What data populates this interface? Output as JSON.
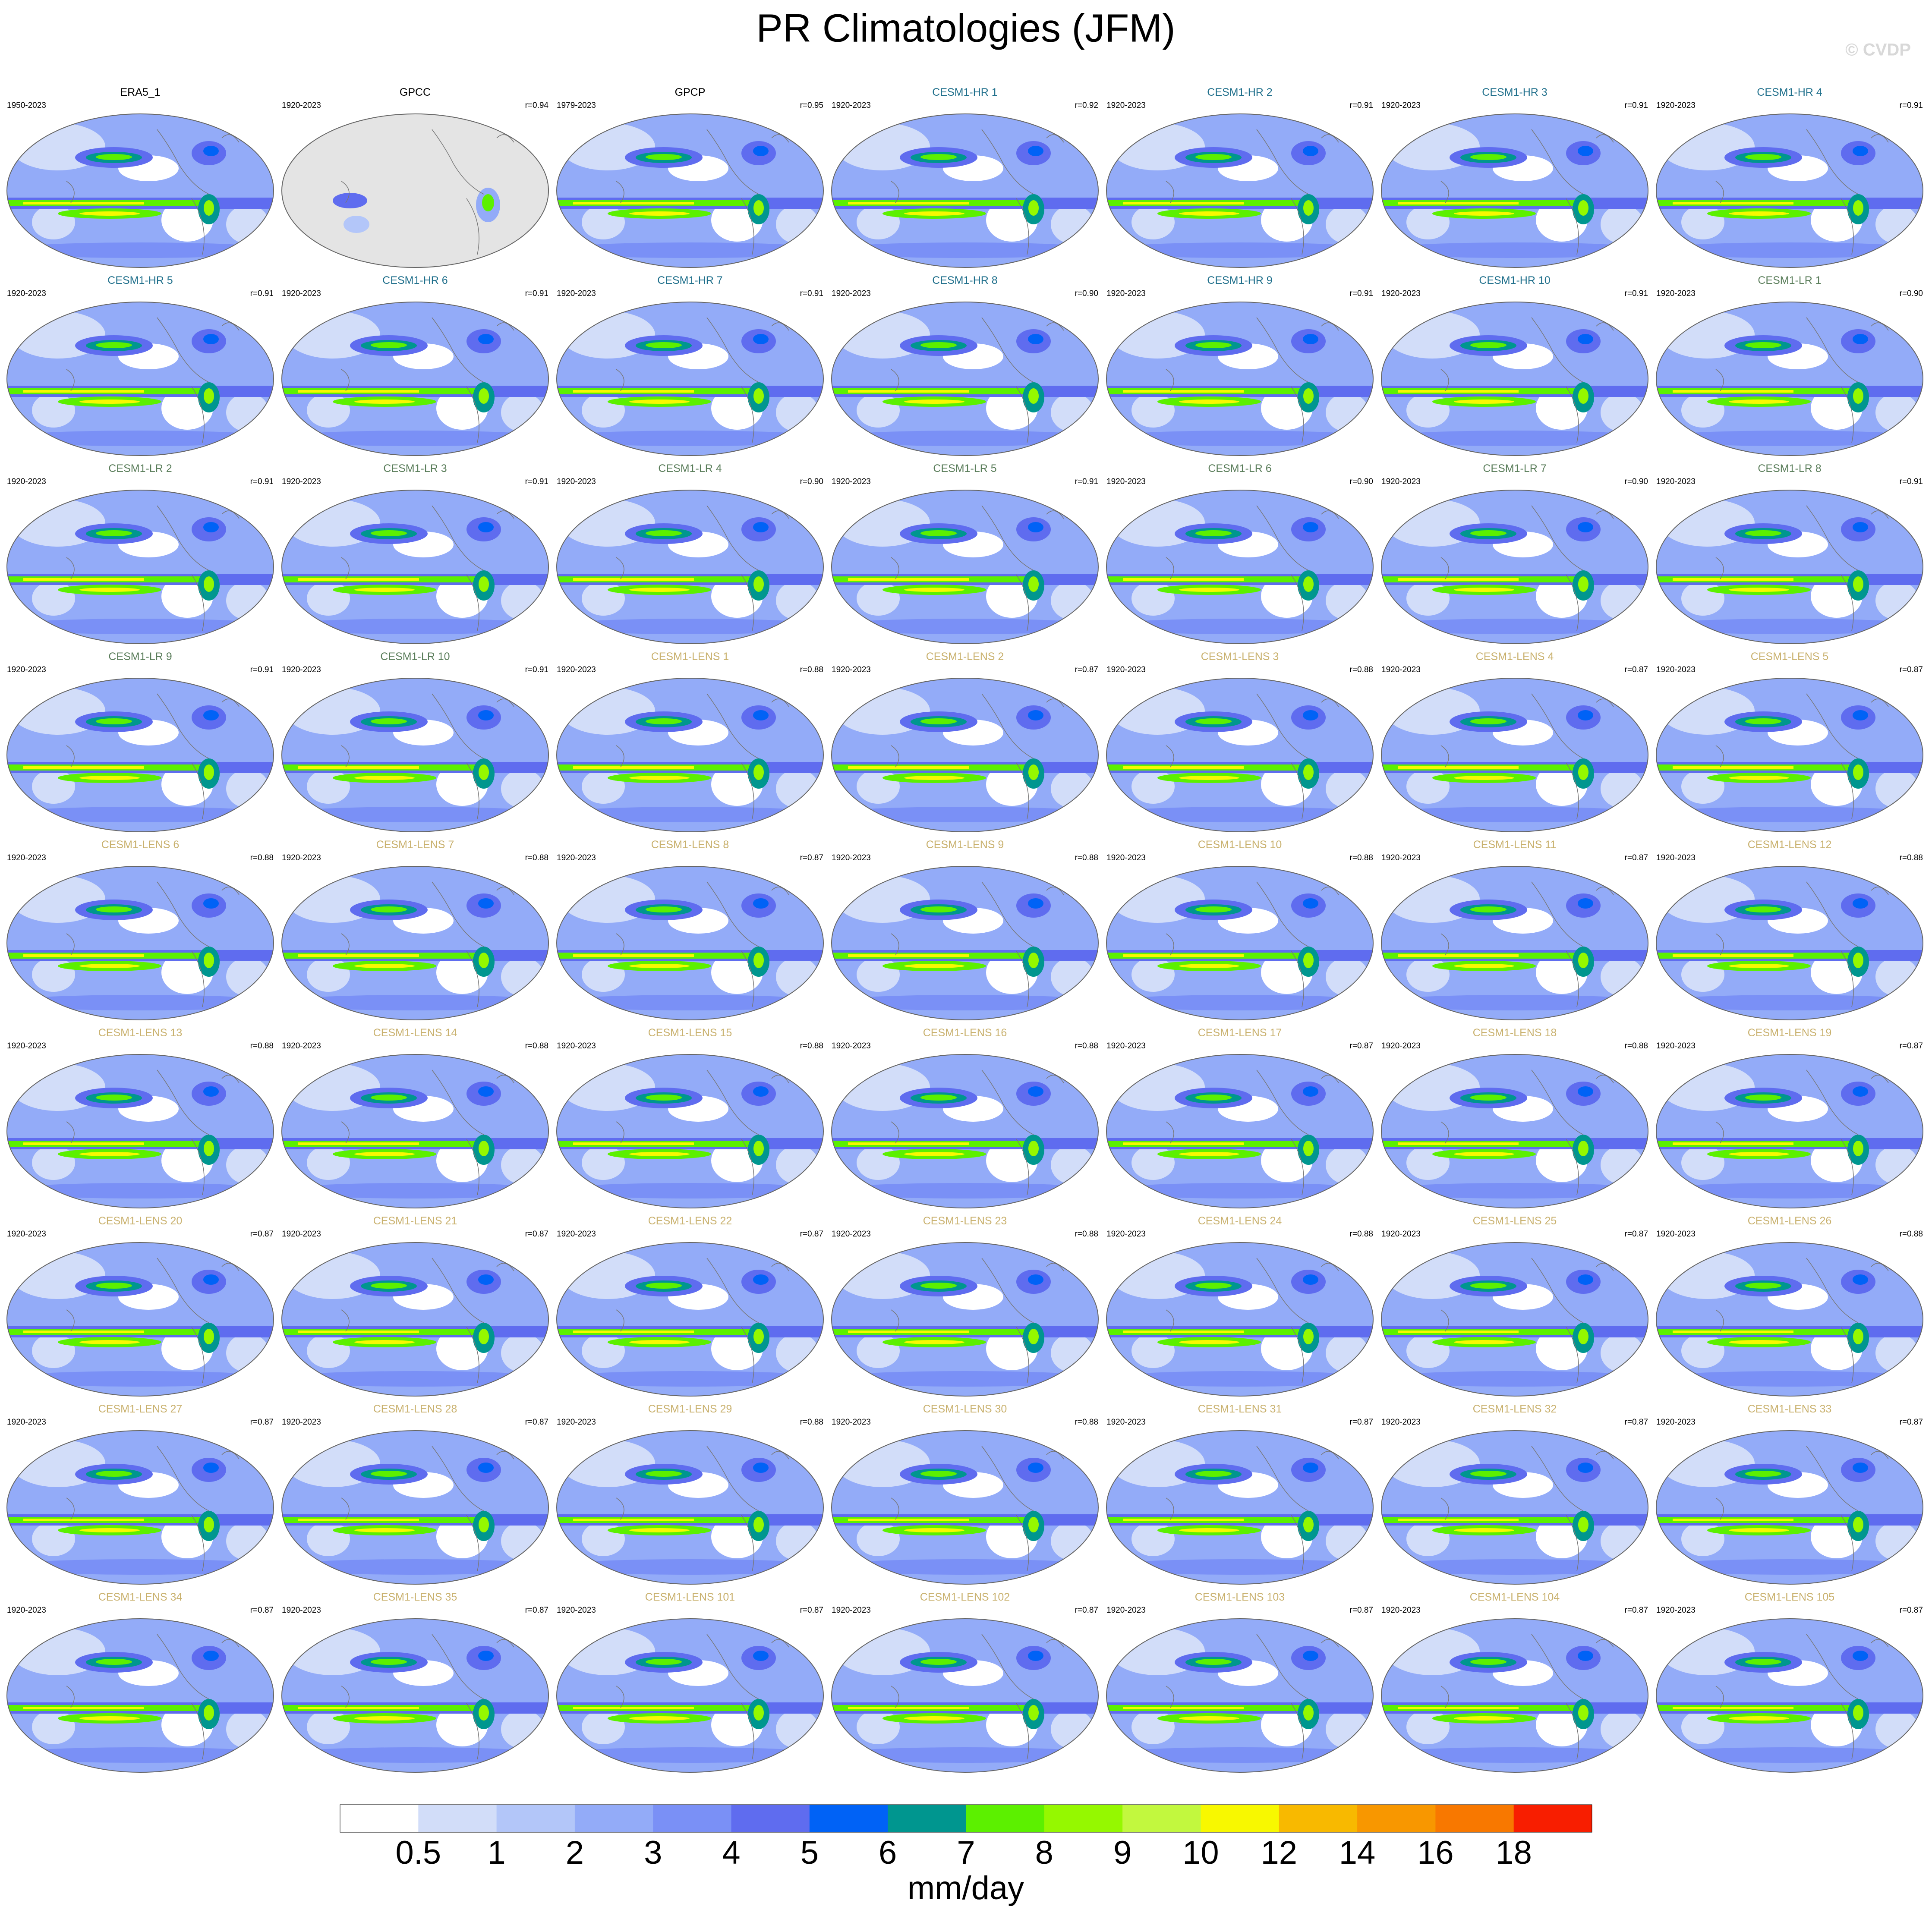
{
  "header": {
    "title": "PR Climatologies (JFM)",
    "watermark": "© CVDP"
  },
  "panels": [
    {
      "title": "ERA5_1",
      "years": "1950-2023",
      "r": null,
      "title_color": "#000000"
    },
    {
      "title": "GPCC",
      "years": "1920-2023",
      "r": "r=0.94",
      "title_color": "#000000",
      "land_only": true
    },
    {
      "title": "GPCP",
      "years": "1979-2023",
      "r": "r=0.95",
      "title_color": "#000000"
    },
    {
      "title": "CESM1-HR 1",
      "years": "1920-2023",
      "r": "r=0.92",
      "title_color": "#1f6f8b"
    },
    {
      "title": "CESM1-HR 2",
      "years": "1920-2023",
      "r": "r=0.91",
      "title_color": "#1f6f8b"
    },
    {
      "title": "CESM1-HR 3",
      "years": "1920-2023",
      "r": "r=0.91",
      "title_color": "#1f6f8b"
    },
    {
      "title": "CESM1-HR 4",
      "years": "1920-2023",
      "r": "r=0.91",
      "title_color": "#1f6f8b"
    },
    {
      "title": "CESM1-HR 5",
      "years": "1920-2023",
      "r": "r=0.91",
      "title_color": "#1f6f8b"
    },
    {
      "title": "CESM1-HR 6",
      "years": "1920-2023",
      "r": "r=0.91",
      "title_color": "#1f6f8b"
    },
    {
      "title": "CESM1-HR 7",
      "years": "1920-2023",
      "r": "r=0.91",
      "title_color": "#1f6f8b"
    },
    {
      "title": "CESM1-HR 8",
      "years": "1920-2023",
      "r": "r=0.90",
      "title_color": "#1f6f8b"
    },
    {
      "title": "CESM1-HR 9",
      "years": "1920-2023",
      "r": "r=0.91",
      "title_color": "#1f6f8b"
    },
    {
      "title": "CESM1-HR 10",
      "years": "1920-2023",
      "r": "r=0.91",
      "title_color": "#1f6f8b"
    },
    {
      "title": "CESM1-LR 1",
      "years": "1920-2023",
      "r": "r=0.90",
      "title_color": "#5a7d5a"
    },
    {
      "title": "CESM1-LR 2",
      "years": "1920-2023",
      "r": "r=0.91",
      "title_color": "#5a7d5a"
    },
    {
      "title": "CESM1-LR 3",
      "years": "1920-2023",
      "r": "r=0.91",
      "title_color": "#5a7d5a"
    },
    {
      "title": "CESM1-LR 4",
      "years": "1920-2023",
      "r": "r=0.90",
      "title_color": "#5a7d5a"
    },
    {
      "title": "CESM1-LR 5",
      "years": "1920-2023",
      "r": "r=0.91",
      "title_color": "#5a7d5a"
    },
    {
      "title": "CESM1-LR 6",
      "years": "1920-2023",
      "r": "r=0.90",
      "title_color": "#5a7d5a"
    },
    {
      "title": "CESM1-LR 7",
      "years": "1920-2023",
      "r": "r=0.90",
      "title_color": "#5a7d5a"
    },
    {
      "title": "CESM1-LR 8",
      "years": "1920-2023",
      "r": "r=0.91",
      "title_color": "#5a7d5a"
    },
    {
      "title": "CESM1-LR 9",
      "years": "1920-2023",
      "r": "r=0.91",
      "title_color": "#5a7d5a"
    },
    {
      "title": "CESM1-LR 10",
      "years": "1920-2023",
      "r": "r=0.91",
      "title_color": "#5a7d5a"
    },
    {
      "title": "CESM1-LENS 1",
      "years": "1920-2023",
      "r": "r=0.88",
      "title_color": "#c9b16e"
    },
    {
      "title": "CESM1-LENS 2",
      "years": "1920-2023",
      "r": "r=0.87",
      "title_color": "#c9b16e"
    },
    {
      "title": "CESM1-LENS 3",
      "years": "1920-2023",
      "r": "r=0.88",
      "title_color": "#c9b16e"
    },
    {
      "title": "CESM1-LENS 4",
      "years": "1920-2023",
      "r": "r=0.87",
      "title_color": "#c9b16e"
    },
    {
      "title": "CESM1-LENS 5",
      "years": "1920-2023",
      "r": "r=0.87",
      "title_color": "#c9b16e"
    },
    {
      "title": "CESM1-LENS 6",
      "years": "1920-2023",
      "r": "r=0.88",
      "title_color": "#c9b16e"
    },
    {
      "title": "CESM1-LENS 7",
      "years": "1920-2023",
      "r": "r=0.88",
      "title_color": "#c9b16e"
    },
    {
      "title": "CESM1-LENS 8",
      "years": "1920-2023",
      "r": "r=0.87",
      "title_color": "#c9b16e"
    },
    {
      "title": "CESM1-LENS 9",
      "years": "1920-2023",
      "r": "r=0.88",
      "title_color": "#c9b16e"
    },
    {
      "title": "CESM1-LENS 10",
      "years": "1920-2023",
      "r": "r=0.88",
      "title_color": "#c9b16e"
    },
    {
      "title": "CESM1-LENS 11",
      "years": "1920-2023",
      "r": "r=0.87",
      "title_color": "#c9b16e"
    },
    {
      "title": "CESM1-LENS 12",
      "years": "1920-2023",
      "r": "r=0.88",
      "title_color": "#c9b16e"
    },
    {
      "title": "CESM1-LENS 13",
      "years": "1920-2023",
      "r": "r=0.88",
      "title_color": "#c9b16e"
    },
    {
      "title": "CESM1-LENS 14",
      "years": "1920-2023",
      "r": "r=0.88",
      "title_color": "#c9b16e"
    },
    {
      "title": "CESM1-LENS 15",
      "years": "1920-2023",
      "r": "r=0.88",
      "title_color": "#c9b16e"
    },
    {
      "title": "CESM1-LENS 16",
      "years": "1920-2023",
      "r": "r=0.88",
      "title_color": "#c9b16e"
    },
    {
      "title": "CESM1-LENS 17",
      "years": "1920-2023",
      "r": "r=0.87",
      "title_color": "#c9b16e"
    },
    {
      "title": "CESM1-LENS 18",
      "years": "1920-2023",
      "r": "r=0.88",
      "title_color": "#c9b16e"
    },
    {
      "title": "CESM1-LENS 19",
      "years": "1920-2023",
      "r": "r=0.87",
      "title_color": "#c9b16e"
    },
    {
      "title": "CESM1-LENS 20",
      "years": "1920-2023",
      "r": "r=0.87",
      "title_color": "#c9b16e"
    },
    {
      "title": "CESM1-LENS 21",
      "years": "1920-2023",
      "r": "r=0.87",
      "title_color": "#c9b16e"
    },
    {
      "title": "CESM1-LENS 22",
      "years": "1920-2023",
      "r": "r=0.87",
      "title_color": "#c9b16e"
    },
    {
      "title": "CESM1-LENS 23",
      "years": "1920-2023",
      "r": "r=0.88",
      "title_color": "#c9b16e"
    },
    {
      "title": "CESM1-LENS 24",
      "years": "1920-2023",
      "r": "r=0.88",
      "title_color": "#c9b16e"
    },
    {
      "title": "CESM1-LENS 25",
      "years": "1920-2023",
      "r": "r=0.87",
      "title_color": "#c9b16e"
    },
    {
      "title": "CESM1-LENS 26",
      "years": "1920-2023",
      "r": "r=0.88",
      "title_color": "#c9b16e"
    },
    {
      "title": "CESM1-LENS 27",
      "years": "1920-2023",
      "r": "r=0.87",
      "title_color": "#c9b16e"
    },
    {
      "title": "CESM1-LENS 28",
      "years": "1920-2023",
      "r": "r=0.87",
      "title_color": "#c9b16e"
    },
    {
      "title": "CESM1-LENS 29",
      "years": "1920-2023",
      "r": "r=0.88",
      "title_color": "#c9b16e"
    },
    {
      "title": "CESM1-LENS 30",
      "years": "1920-2023",
      "r": "r=0.88",
      "title_color": "#c9b16e"
    },
    {
      "title": "CESM1-LENS 31",
      "years": "1920-2023",
      "r": "r=0.87",
      "title_color": "#c9b16e"
    },
    {
      "title": "CESM1-LENS 32",
      "years": "1920-2023",
      "r": "r=0.87",
      "title_color": "#c9b16e"
    },
    {
      "title": "CESM1-LENS 33",
      "years": "1920-2023",
      "r": "r=0.87",
      "title_color": "#c9b16e"
    },
    {
      "title": "CESM1-LENS 34",
      "years": "1920-2023",
      "r": "r=0.87",
      "title_color": "#c9b16e"
    },
    {
      "title": "CESM1-LENS 35",
      "years": "1920-2023",
      "r": "r=0.87",
      "title_color": "#c9b16e"
    },
    {
      "title": "CESM1-LENS 101",
      "years": "1920-2023",
      "r": "r=0.87",
      "title_color": "#c9b16e"
    },
    {
      "title": "CESM1-LENS 102",
      "years": "1920-2023",
      "r": "r=0.87",
      "title_color": "#c9b16e"
    },
    {
      "title": "CESM1-LENS 103",
      "years": "1920-2023",
      "r": "r=0.87",
      "title_color": "#c9b16e"
    },
    {
      "title": "CESM1-LENS 104",
      "years": "1920-2023",
      "r": "r=0.87",
      "title_color": "#c9b16e"
    },
    {
      "title": "CESM1-LENS 105",
      "years": "1920-2023",
      "r": "r=0.87",
      "title_color": "#c9b16e"
    }
  ],
  "colorbar": {
    "colors": [
      "#ffffff",
      "#d2ddf9",
      "#b3c6f9",
      "#93abf8",
      "#7a90f6",
      "#5f6cef",
      "#0062f6",
      "#00968f",
      "#5cf000",
      "#95f800",
      "#c2f83e",
      "#f8f800",
      "#f8b900",
      "#f89700",
      "#f87800",
      "#f81e00"
    ],
    "levels": [
      0.5,
      1,
      2,
      3,
      4,
      5,
      6,
      7,
      8,
      9,
      10,
      12,
      14,
      16,
      18
    ],
    "unit": "mm/day"
  }
}
